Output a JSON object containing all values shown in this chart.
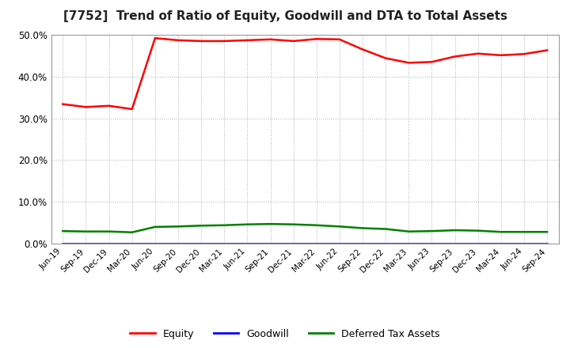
{
  "title": "[7752]  Trend of Ratio of Equity, Goodwill and DTA to Total Assets",
  "x_labels": [
    "Jun-19",
    "Sep-19",
    "Dec-19",
    "Mar-20",
    "Jun-20",
    "Sep-20",
    "Dec-20",
    "Mar-21",
    "Jun-21",
    "Sep-21",
    "Dec-21",
    "Mar-22",
    "Jun-22",
    "Sep-22",
    "Dec-22",
    "Mar-23",
    "Jun-23",
    "Sep-23",
    "Dec-23",
    "Mar-24",
    "Jun-24",
    "Sep-24"
  ],
  "equity": [
    33.4,
    32.7,
    33.0,
    32.2,
    49.2,
    48.7,
    48.5,
    48.5,
    48.7,
    48.9,
    48.5,
    49.0,
    48.9,
    46.5,
    44.4,
    43.3,
    43.5,
    44.8,
    45.5,
    45.1,
    45.4,
    46.3
  ],
  "goodwill": [
    0.0,
    0.0,
    0.0,
    0.0,
    0.0,
    0.0,
    0.0,
    0.0,
    0.0,
    0.0,
    0.0,
    0.0,
    0.0,
    0.0,
    0.0,
    0.0,
    0.0,
    0.0,
    0.0,
    0.0,
    0.0,
    0.0
  ],
  "dta": [
    3.0,
    2.9,
    2.9,
    2.7,
    4.0,
    4.1,
    4.3,
    4.4,
    4.6,
    4.7,
    4.6,
    4.4,
    4.1,
    3.7,
    3.5,
    2.9,
    3.0,
    3.2,
    3.1,
    2.8,
    2.8,
    2.8
  ],
  "equity_color": "#ff0000",
  "goodwill_color": "#0000ff",
  "dta_color": "#008000",
  "ylim": [
    0,
    50
  ],
  "yticks": [
    0.0,
    10.0,
    20.0,
    30.0,
    40.0,
    50.0
  ],
  "background_color": "#ffffff",
  "plot_bg_color": "#ffffff",
  "grid_color": "#b0b0b0",
  "title_fontsize": 11,
  "legend_labels": [
    "Equity",
    "Goodwill",
    "Deferred Tax Assets"
  ]
}
